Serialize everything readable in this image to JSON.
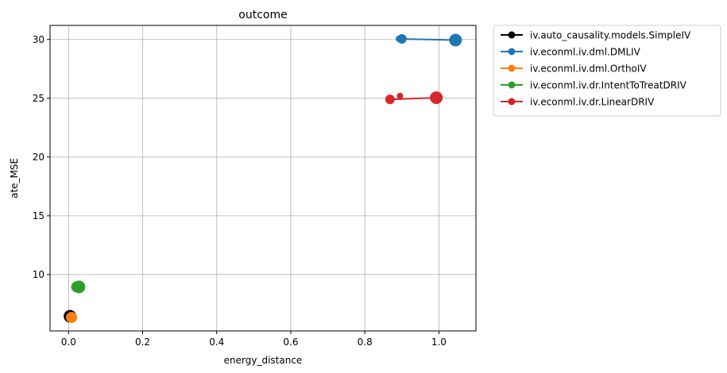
{
  "chart_data": {
    "type": "scatter",
    "title": "outcome",
    "xlabel": "energy_distance",
    "ylabel": "ate_MSE",
    "xlim": [
      -0.05,
      1.1
    ],
    "ylim": [
      5.2,
      31.2
    ],
    "xticks": [
      {
        "value": 0.0,
        "label": "0.0"
      },
      {
        "value": 0.2,
        "label": "0.2"
      },
      {
        "value": 0.4,
        "label": "0.4"
      },
      {
        "value": 0.6,
        "label": "0.6"
      },
      {
        "value": 0.8,
        "label": "0.8"
      },
      {
        "value": 1.0,
        "label": "1.0"
      }
    ],
    "yticks": [
      {
        "value": 10,
        "label": "10"
      },
      {
        "value": 15,
        "label": "15"
      },
      {
        "value": 20,
        "label": "20"
      },
      {
        "value": 25,
        "label": "25"
      },
      {
        "value": 30,
        "label": "30"
      }
    ],
    "grid": true,
    "legend_position": "outside-top-right",
    "series": [
      {
        "name": "iv.auto_causality.models.SimpleIV",
        "color": "#000000",
        "points": [
          {
            "x": 0.004,
            "y": 6.45,
            "size": 8
          },
          {
            "x": 0.007,
            "y": 6.38,
            "size": 7
          }
        ],
        "line": [
          {
            "x": 0.004,
            "y": 6.45
          },
          {
            "x": 0.007,
            "y": 6.38
          }
        ]
      },
      {
        "name": "iv.econml.iv.dml.DMLIV",
        "color": "#1f77b4",
        "points": [
          {
            "x": 0.892,
            "y": 30.05,
            "size": 4
          },
          {
            "x": 0.9,
            "y": 30.05,
            "size": 6
          },
          {
            "x": 1.045,
            "y": 29.95,
            "size": 8
          }
        ],
        "line": [
          {
            "x": 0.9,
            "y": 30.05
          },
          {
            "x": 1.045,
            "y": 29.95
          }
        ]
      },
      {
        "name": "iv.econml.iv.dml.OrthoIV",
        "color": "#ff7f0e",
        "points": [
          {
            "x": 0.008,
            "y": 6.35,
            "size": 7
          }
        ],
        "line": []
      },
      {
        "name": "iv.econml.iv.dr.IntentToTreatDRIV",
        "color": "#2ca02c",
        "points": [
          {
            "x": 0.022,
            "y": 8.95,
            "size": 7
          },
          {
            "x": 0.028,
            "y": 8.95,
            "size": 8
          }
        ],
        "line": []
      },
      {
        "name": "iv.econml.iv.dr.LinearDRIV",
        "color": "#d62728",
        "points": [
          {
            "x": 0.868,
            "y": 24.9,
            "size": 6
          },
          {
            "x": 0.895,
            "y": 25.2,
            "size": 4
          },
          {
            "x": 0.993,
            "y": 25.05,
            "size": 8
          }
        ],
        "line": [
          {
            "x": 0.868,
            "y": 24.9
          },
          {
            "x": 0.993,
            "y": 25.05
          }
        ]
      }
    ]
  }
}
